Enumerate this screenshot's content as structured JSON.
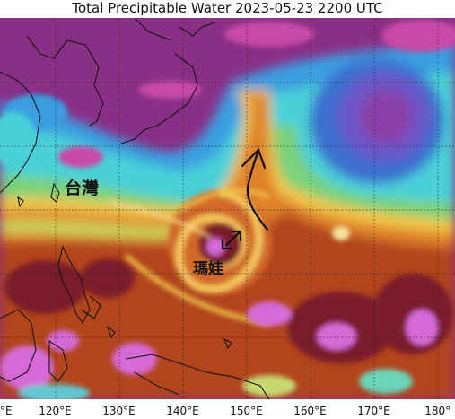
{
  "title": "Total Precipitable Water  2023-05-23 2200 UTC",
  "map": {
    "labels": {
      "taiwan": "台灣",
      "typhoon": "瑪娃"
    },
    "x_ticks": [
      {
        "label": "°E",
        "lon": 110
      },
      {
        "label": "120°E",
        "lon": 120
      },
      {
        "label": "130°E",
        "lon": 130
      },
      {
        "label": "140°E",
        "lon": 140
      },
      {
        "label": "150°E",
        "lon": 150
      },
      {
        "label": "160°E",
        "lon": 160
      },
      {
        "label": "170°E",
        "lon": 170
      },
      {
        "label": "180°",
        "lon": 180
      }
    ],
    "lon_range": [
      110,
      181
    ],
    "grid": true,
    "colors": {
      "dry_purple": "#8a2f86",
      "magenta": "#c84aa8",
      "blue": "#3a9ee0",
      "cyan": "#48d0d8",
      "green": "#7ad27a",
      "yellow": "#f0c64a",
      "orange": "#e0822a",
      "dark_orange": "#b2441c",
      "maroon": "#7a1f2a",
      "pink": "#d66ad6",
      "coast": "#151515"
    }
  }
}
